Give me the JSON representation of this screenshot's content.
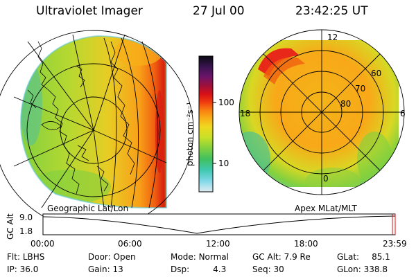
{
  "header": {
    "instrument": "Ultraviolet Imager",
    "date": "27 Jul 00",
    "time": "23:42:25 UT"
  },
  "colorbar": {
    "unit_label": "photon cm⁻²s⁻¹",
    "ticks": [
      {
        "label": "100",
        "value": 100
      },
      {
        "label": "10",
        "value": 10
      }
    ],
    "colors": [
      "#0a0a14",
      "#3a1450",
      "#6a146a",
      "#a0103a",
      "#d81018",
      "#f03c10",
      "#f88010",
      "#f8b018",
      "#f0d820",
      "#c8e028",
      "#80d040",
      "#40c060",
      "#40c8b0",
      "#80d8e8",
      "#d0e8f0"
    ]
  },
  "left_panel": {
    "caption": "Geographic Lat/Lon"
  },
  "right_panel": {
    "caption": "Apex MLat/MLT",
    "mlt_labels": [
      {
        "label": "12",
        "pos": "top"
      },
      {
        "label": "18",
        "pos": "left"
      },
      {
        "label": "6",
        "pos": "right"
      },
      {
        "label": "0",
        "pos": "bottom"
      }
    ],
    "mlat_labels": [
      {
        "label": "60",
        "lat": 60
      },
      {
        "label": "70",
        "lat": 70
      },
      {
        "label": "80",
        "lat": 80
      }
    ]
  },
  "altitude_plot": {
    "ylabel": "GC Alt",
    "yticks": [
      "9.0",
      "1.8"
    ],
    "xticks": [
      "00:00",
      "06:00",
      "12:00",
      "18:00",
      "23:59"
    ]
  },
  "status": {
    "flt_label": "Flt:",
    "flt_value": "LBHS",
    "ip_label": "IP:",
    "ip_value": "36.0",
    "door_label": "Door:",
    "door_value": "Open",
    "gain_label": "Gain:",
    "gain_value": "13",
    "mode_label": "Mode:",
    "mode_value": "Normal",
    "dsp_label": "Dsp:",
    "dsp_value": "4.3",
    "gcalt_label": "GC Alt:",
    "gcalt_value": "7.9 Re",
    "seq_label": "Seq:",
    "seq_value": "30",
    "glat_label": "GLat:",
    "glat_value": "85.1",
    "glon_label": "GLon:",
    "glon_value": "338.8"
  }
}
